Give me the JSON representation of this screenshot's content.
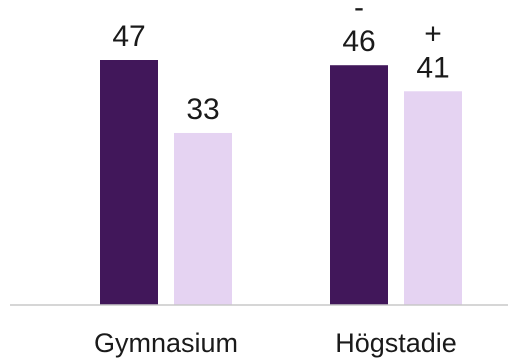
{
  "chart_data": {
    "type": "bar",
    "categories": [
      "Gymnasium",
      "Högstadie"
    ],
    "series": [
      {
        "color": "#41175a",
        "values": [
          47,
          46
        ]
      },
      {
        "color": "#e5d3f2",
        "values": [
          33,
          41
        ]
      }
    ],
    "markers": [
      [
        null,
        "-"
      ],
      [
        null,
        "+"
      ]
    ],
    "ylim": [
      0,
      50
    ],
    "grid": false,
    "legend": "none",
    "title": "",
    "xlabel": "",
    "ylabel": "",
    "axis_color": "#c8c8c8"
  }
}
